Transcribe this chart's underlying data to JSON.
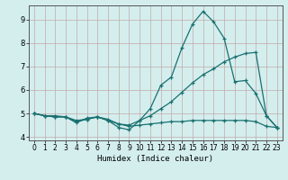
{
  "xlabel": "Humidex (Indice chaleur)",
  "background_color": "#d4eeee",
  "grid_color_h": "#c8b0b0",
  "grid_color_v": "#c8b0b0",
  "line_color": "#1a7070",
  "xlim": [
    -0.5,
    23.5
  ],
  "ylim": [
    3.85,
    9.6
  ],
  "xticks": [
    0,
    1,
    2,
    3,
    4,
    5,
    6,
    7,
    8,
    9,
    10,
    11,
    12,
    13,
    14,
    15,
    16,
    17,
    18,
    19,
    20,
    21,
    22,
    23
  ],
  "yticks": [
    4,
    5,
    6,
    7,
    8,
    9
  ],
  "series": [
    {
      "x": [
        0,
        1,
        2,
        3,
        4,
        5,
        6,
        7,
        8,
        9,
        10,
        11,
        12,
        13,
        14,
        15,
        16,
        17,
        18,
        19,
        20,
        21,
        22,
        23
      ],
      "y": [
        5.0,
        4.9,
        4.9,
        4.85,
        4.6,
        4.8,
        4.85,
        4.7,
        4.4,
        4.3,
        4.7,
        5.2,
        6.2,
        6.55,
        7.8,
        8.8,
        9.35,
        8.9,
        8.2,
        6.35,
        6.4,
        5.85,
        4.9,
        4.4
      ]
    },
    {
      "x": [
        0,
        1,
        2,
        3,
        4,
        5,
        6,
        7,
        8,
        9,
        10,
        11,
        12,
        13,
        14,
        15,
        16,
        17,
        18,
        19,
        20,
        21,
        22,
        23
      ],
      "y": [
        5.0,
        4.9,
        4.85,
        4.85,
        4.7,
        4.75,
        4.85,
        4.7,
        4.55,
        4.5,
        4.7,
        4.9,
        5.2,
        5.5,
        5.9,
        6.3,
        6.65,
        6.9,
        7.2,
        7.4,
        7.55,
        7.6,
        4.9,
        4.4
      ]
    },
    {
      "x": [
        0,
        1,
        2,
        3,
        4,
        5,
        6,
        7,
        8,
        9,
        10,
        11,
        12,
        13,
        14,
        15,
        16,
        17,
        18,
        19,
        20,
        21,
        22,
        23
      ],
      "y": [
        5.0,
        4.9,
        4.85,
        4.85,
        4.65,
        4.75,
        4.85,
        4.75,
        4.55,
        4.45,
        4.5,
        4.55,
        4.6,
        4.65,
        4.65,
        4.7,
        4.7,
        4.7,
        4.7,
        4.7,
        4.7,
        4.65,
        4.45,
        4.4
      ]
    }
  ]
}
